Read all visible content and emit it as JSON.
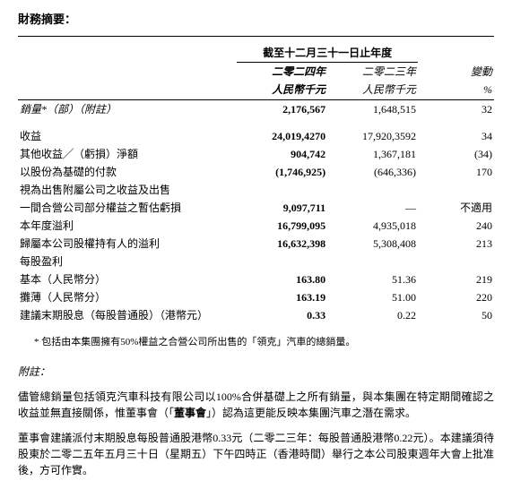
{
  "title": "財務摘要：",
  "table": {
    "period_header": "截至十二月三十一日止年度",
    "col_headers": {
      "year_2024": "二零二四年",
      "year_2023": "二零二三年",
      "change": "變動",
      "unit_2024": "人民幣千元",
      "unit_2023": "人民幣千元",
      "change_unit": "%"
    },
    "rows": [
      {
        "label": "銷量*（部）（附註）",
        "v2024": "2,176,567",
        "v2023": "1,648,515",
        "change": "32",
        "italic": true
      },
      {
        "spacer": true
      },
      {
        "label": "收益",
        "v2024": "24,019,4270",
        "v2023": "17,920,3592",
        "change": "34"
      },
      {
        "label": "其他收益╱（虧損）淨額",
        "v2024": "904,742",
        "v2023": "1,367,181",
        "change": "(34)"
      },
      {
        "label": "以股份為基礎的付款",
        "v2024": "(1,746,925)",
        "v2023": "(646,336)",
        "change": "170"
      },
      {
        "label": "視為出售附屬公司之收益及出售",
        "v2024": "",
        "v2023": "",
        "change": ""
      },
      {
        "label": "一間合營公司部分權益之暫估虧損",
        "v2024": "9,097,711",
        "v2023": "—",
        "change": "不適用",
        "indent": true
      },
      {
        "label": "本年度溢利",
        "v2024": "16,799,095",
        "v2023": "4,935,018",
        "change": "240"
      },
      {
        "label": "歸屬本公司股權持有人的溢利",
        "v2024": "16,632,398",
        "v2023": "5,308,408",
        "change": "213"
      },
      {
        "label": "每股盈利",
        "v2024": "",
        "v2023": "",
        "change": ""
      },
      {
        "label": "基本（人民幣分）",
        "v2024": "163.80",
        "v2023": "51.36",
        "change": "219",
        "indent": true
      },
      {
        "label": "攤薄（人民幣分）",
        "v2024": "163.19",
        "v2023": "51.00",
        "change": "220",
        "indent": true
      },
      {
        "label": "建議末期股息（每股普通股）（港幣元）",
        "v2024": "0.33",
        "v2023": "0.22",
        "change": "50"
      }
    ]
  },
  "star_note": "* 包括由本集團擁有50%權益之合營公司所出售的「領克」汽車的總銷量。",
  "notes_label": "附註：",
  "note_para1_a": "儘管總銷量包括領克汽車科技有限公司以100%合併基礎上之所有銷量，與本集團在特定期間確認之收益並無直接關係，惟董事會（「",
  "note_para1_bold": "董事會",
  "note_para1_b": "」）認為這更能反映本集團汽車之潛在需求。",
  "note_para2": "董事會建議派付末期股息每股普通股港幣0.33元（二零二三年：每股普通股港幣0.22元）。本建議須待股東於二零二五年五月三十日（星期五）下午四時正（香港時間）舉行之本公司股東週年大會上批准後，方可作實。"
}
